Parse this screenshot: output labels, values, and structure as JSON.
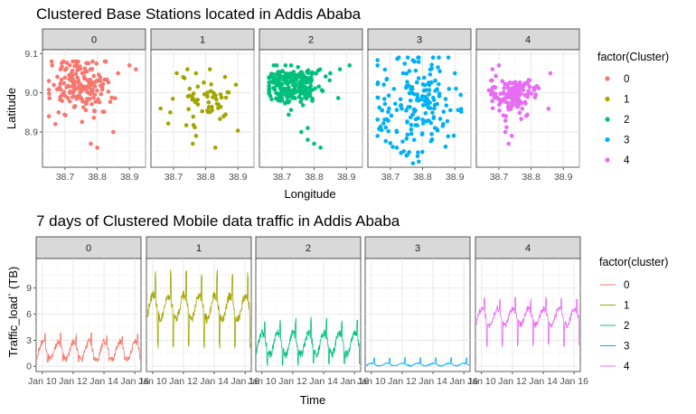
{
  "chart_data": [
    {
      "type": "scatter",
      "title": "Clustered Base Stations located in Addis Ababa",
      "xlabel": "Longitude",
      "ylabel": "Latitude",
      "facets": [
        "0",
        "1",
        "2",
        "3",
        "4"
      ],
      "xlim": [
        38.63,
        38.95
      ],
      "ylim": [
        8.81,
        9.11
      ],
      "x_ticks": [
        38.7,
        38.8,
        38.9
      ],
      "x_tick_labels": [
        "38.7",
        "38.8",
        "38.9"
      ],
      "y_ticks": [
        8.9,
        9.0,
        9.1
      ],
      "y_tick_labels": [
        "8.9",
        "9.0",
        "9.1"
      ],
      "legend_title": "factor(Cluster)",
      "legend_position": "right",
      "grid": true,
      "series": [
        {
          "name": "0",
          "color": "#F8766D",
          "cx": 38.75,
          "cy": 9.02,
          "sx": 0.045,
          "sy": 0.035,
          "n": 170,
          "x_range": [
            38.65,
            38.92
          ],
          "y_range": [
            8.86,
            9.08
          ],
          "points": [
            [
              38.65,
              8.94
            ],
            [
              38.67,
              8.92
            ],
            [
              38.68,
              8.95
            ],
            [
              38.9,
              9.07
            ],
            [
              38.92,
              9.06
            ],
            [
              38.8,
              8.86
            ],
            [
              38.78,
              8.87
            ],
            [
              38.85,
              8.9
            ],
            [
              38.66,
              9.07
            ]
          ]
        },
        {
          "name": "1",
          "color": "#A3A500",
          "cx": 38.8,
          "cy": 8.98,
          "sx": 0.05,
          "sy": 0.035,
          "n": 55,
          "x_range": [
            38.66,
            38.9
          ],
          "y_range": [
            8.86,
            9.06
          ],
          "points": [
            [
              38.71,
              9.05
            ],
            [
              38.73,
              9.04
            ],
            [
              38.77,
              9.05
            ],
            [
              38.83,
              8.86
            ],
            [
              38.77,
              8.89
            ],
            [
              38.76,
              8.87
            ],
            [
              38.69,
              8.95
            ],
            [
              38.66,
              8.96
            ]
          ]
        },
        {
          "name": "2",
          "color": "#00BF7D",
          "cx": 38.73,
          "cy": 9.02,
          "sx": 0.04,
          "sy": 0.025,
          "n": 260,
          "x_range": [
            38.66,
            38.91
          ],
          "y_range": [
            8.86,
            9.07
          ],
          "points": [
            [
              38.76,
              8.9
            ],
            [
              38.78,
              8.88
            ],
            [
              38.8,
              8.87
            ],
            [
              38.82,
              8.86
            ],
            [
              38.78,
              8.91
            ],
            [
              38.88,
              9.06
            ],
            [
              38.91,
              9.07
            ],
            [
              38.85,
              9.05
            ]
          ]
        },
        {
          "name": "3",
          "color": "#00B0F6",
          "cx": 38.78,
          "cy": 8.97,
          "sx": 0.07,
          "sy": 0.07,
          "n": 180,
          "x_range": [
            38.66,
            38.92
          ],
          "y_range": [
            8.82,
            9.09
          ],
          "points": [
            [
              38.77,
              8.82
            ],
            [
              38.75,
              8.84
            ],
            [
              38.72,
              8.86
            ],
            [
              38.88,
              9.09
            ],
            [
              38.66,
              9.07
            ],
            [
              38.9,
              9.05
            ]
          ]
        },
        {
          "name": "4",
          "color": "#E76BF3",
          "cx": 38.74,
          "cy": 8.99,
          "sx": 0.035,
          "sy": 0.025,
          "n": 140,
          "x_range": [
            38.66,
            38.88
          ],
          "y_range": [
            8.86,
            9.07
          ],
          "points": [
            [
              38.73,
              8.87
            ],
            [
              38.74,
              8.89
            ],
            [
              38.72,
              8.9
            ],
            [
              38.7,
              9.07
            ],
            [
              38.68,
              9.06
            ],
            [
              38.86,
              9.05
            ]
          ]
        }
      ]
    },
    {
      "type": "line",
      "title": "7 days of Clustered Mobile data traffic in Addis Ababa",
      "xlabel": "Time",
      "ylabel": "Traffic_load` (TB)",
      "facets": [
        "0",
        "1",
        "2",
        "3",
        "4"
      ],
      "xlim": [
        9.6,
        16.4
      ],
      "x_ticks": [
        10,
        12,
        14,
        16
      ],
      "x_tick_labels": [
        "Jan 10",
        "Jan 12",
        "Jan 14",
        "Jan 16"
      ],
      "ylim": [
        -0.6,
        12.4
      ],
      "y_ticks": [
        0,
        3,
        6,
        9
      ],
      "y_tick_labels": [
        "0",
        "3",
        "6",
        "9"
      ],
      "legend_title": "factor(cluster)",
      "legend_position": "right",
      "grid": true,
      "series": [
        {
          "name": "0",
          "color": "#F8766D",
          "base": 1.8,
          "amp": 1.7,
          "spike": 3.9,
          "low": 0.4
        },
        {
          "name": "1",
          "color": "#A3A500",
          "base": 6.8,
          "amp": 2.3,
          "spike": 11.2,
          "low": 2.0
        },
        {
          "name": "2",
          "color": "#00BF7D",
          "base": 2.6,
          "amp": 2.1,
          "spike": 5.7,
          "low": 0.0
        },
        {
          "name": "3",
          "color": "#00B0F6",
          "base": 0.2,
          "amp": 0.25,
          "spike": 1.0,
          "low": 0.05
        },
        {
          "name": "4",
          "color": "#E76BF3",
          "base": 5.7,
          "amp": 1.6,
          "spike": 8.0,
          "low": 2.2
        }
      ]
    }
  ]
}
